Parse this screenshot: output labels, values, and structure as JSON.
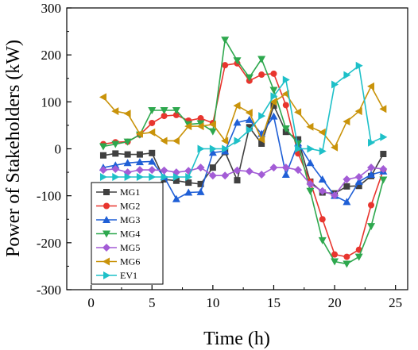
{
  "chart_data": {
    "type": "line",
    "xlabel": "Time (h)",
    "ylabel": "Power of Stakeholders (kW)",
    "xlim": [
      -2,
      26
    ],
    "ylim": [
      -300,
      300
    ],
    "xticks": [
      0,
      5,
      10,
      15,
      20,
      25
    ],
    "yticks": [
      -300,
      -200,
      -100,
      0,
      100,
      200,
      300
    ],
    "legend_position": "bottom-left",
    "x": [
      1,
      2,
      3,
      4,
      5,
      6,
      7,
      8,
      9,
      10,
      11,
      12,
      13,
      14,
      15,
      16,
      17,
      18,
      19,
      20,
      21,
      22,
      23,
      24
    ],
    "series": [
      {
        "name": "MG1",
        "color": "#404040",
        "marker": "square",
        "values": [
          -14,
          -10,
          -12,
          -12,
          -9,
          -65,
          -68,
          -72,
          -75,
          -40,
          -7,
          -67,
          46,
          11,
          92,
          36,
          20,
          -70,
          -93,
          -95,
          -80,
          -79,
          -58,
          -11
        ]
      },
      {
        "name": "MG2",
        "color": "#e8352e",
        "marker": "circle",
        "values": [
          10,
          14,
          15,
          30,
          55,
          70,
          72,
          60,
          65,
          55,
          178,
          182,
          145,
          158,
          160,
          93,
          -10,
          -70,
          -150,
          -225,
          -230,
          -215,
          -120,
          -45
        ]
      },
      {
        "name": "MG3",
        "color": "#1f5fd6",
        "marker": "triangle-up",
        "values": [
          -40,
          -35,
          -30,
          -28,
          -27,
          -60,
          -107,
          -93,
          -92,
          -8,
          -5,
          56,
          62,
          32,
          69,
          -55,
          12,
          -30,
          -65,
          -100,
          -113,
          -70,
          -55,
          -48
        ]
      },
      {
        "name": "MG4",
        "color": "#2ea84e",
        "marker": "triangle-down",
        "values": [
          5,
          10,
          15,
          30,
          82,
          82,
          82,
          52,
          54,
          37,
          232,
          188,
          152,
          191,
          125,
          43,
          11,
          -90,
          -195,
          -240,
          -245,
          -230,
          -165,
          -66
        ]
      },
      {
        "name": "MG5",
        "color": "#a35cd6",
        "marker": "diamond",
        "values": [
          -45,
          -43,
          -50,
          -45,
          -45,
          -46,
          -50,
          -47,
          -40,
          -57,
          -57,
          -46,
          -48,
          -55,
          -40,
          -40,
          -45,
          -75,
          -90,
          -99,
          -65,
          -60,
          -40,
          -43
        ]
      },
      {
        "name": "MG6",
        "color": "#c9930a",
        "marker": "triangle-left",
        "values": [
          110,
          80,
          75,
          32,
          35,
          17,
          17,
          48,
          48,
          52,
          17,
          92,
          77,
          20,
          100,
          117,
          78,
          47,
          35,
          3,
          58,
          80,
          133,
          85
        ]
      },
      {
        "name": "EV1",
        "color": "#1ec0c8",
        "marker": "triangle-right",
        "values": [
          -60,
          -60,
          -60,
          -60,
          -60,
          -60,
          -60,
          -60,
          0,
          0,
          0,
          17,
          40,
          70,
          112,
          147,
          0,
          0,
          -5,
          137,
          157,
          177,
          13,
          25
        ]
      }
    ]
  }
}
